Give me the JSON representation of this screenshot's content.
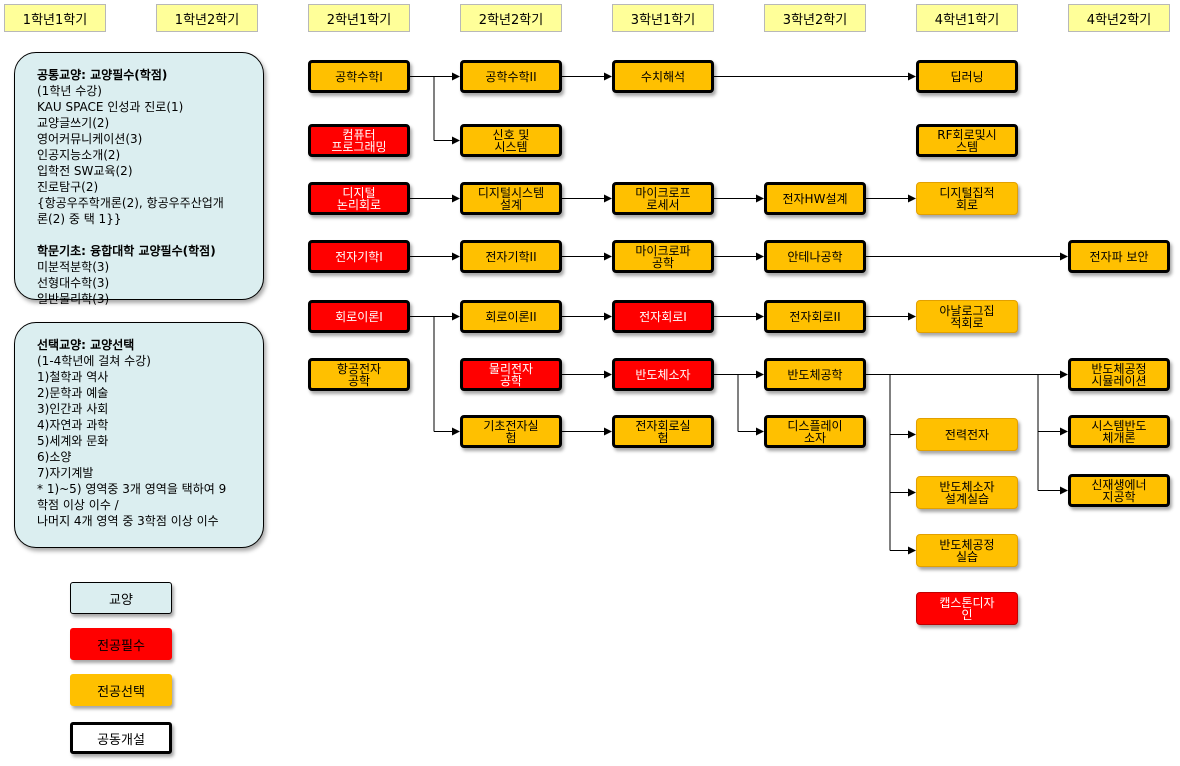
{
  "semesters": [
    "1학년1학기",
    "1학년2학기",
    "2학년1학기",
    "2학년2학기",
    "3학년1학기",
    "3학년2학기",
    "4학년1학기",
    "4학년2학기"
  ],
  "panel1": {
    "lines": [
      {
        "t": "공통교양: 교양필수(학점)",
        "b": true
      },
      {
        "t": "(1학년 수강)"
      },
      {
        "t": "KAU SPACE 인성과 진로(1)"
      },
      {
        "t": "교양글쓰기(2)"
      },
      {
        "t": "영어커뮤니케이션(3)"
      },
      {
        "t": "인공지능소개(2)"
      },
      {
        "t": "입학전 SW교육(2)"
      },
      {
        "t": "진로탐구(2)"
      },
      {
        "t": "{항공우주학개론(2), 항공우주산업개"
      },
      {
        "t": "론(2) 중 택 1}}"
      },
      {
        "gap": true
      },
      {
        "t": "학문기초: 융합대학 교양필수(학점)",
        "b": true
      },
      {
        "t": "미분적분학(3)"
      },
      {
        "t": "선형대수학(3)"
      },
      {
        "t": "일반물리학(3)"
      }
    ]
  },
  "panel2": {
    "lines": [
      {
        "t": "선택교양: 교양선택",
        "b": true
      },
      {
        "t": "(1-4학년에 걸쳐 수강)"
      },
      {
        "t": "1)철학과 역사"
      },
      {
        "t": "2)문학과 예술"
      },
      {
        "t": "3)인간과 사회"
      },
      {
        "t": "4)자연과 과학"
      },
      {
        "t": "5)세계와 문화"
      },
      {
        "t": "6)소양"
      },
      {
        "t": "7)자기계발"
      },
      {
        "t": "* 1)~5) 영역중 3개 영역을 택하여 9"
      },
      {
        "t": "학점 이상 이수 /"
      },
      {
        "t": "나머지 4개 영역 중 3학점 이상 이수"
      }
    ]
  },
  "legend": [
    {
      "label": "교양",
      "fill": "#dbeef0",
      "border": "#000000"
    },
    {
      "label": "전공필수",
      "fill": "#ff0000",
      "border": "#ff0000"
    },
    {
      "label": "전공선택",
      "fill": "#ffc000",
      "border": "#ffc000"
    },
    {
      "label": "공동개설",
      "fill": "#ffffff",
      "border": "#000000"
    }
  ],
  "courses": [
    {
      "id": "c1",
      "label": "공학수학I",
      "kind": "orange",
      "bold": true
    },
    {
      "id": "c2",
      "label": "공학수학II",
      "kind": "orange",
      "bold": true
    },
    {
      "id": "c3",
      "label": "수치해석",
      "kind": "orange",
      "bold": true
    },
    {
      "id": "c4",
      "label": "딥러닝",
      "kind": "orange",
      "bold": true
    },
    {
      "id": "c5",
      "label": "컴퓨터\n프로그래밍",
      "kind": "red",
      "bold": true
    },
    {
      "id": "c6",
      "label": "신호 및\n시스템",
      "kind": "orange",
      "bold": true
    },
    {
      "id": "c7",
      "label": "RF회로및시\n스템",
      "kind": "orange",
      "bold": true
    },
    {
      "id": "c8",
      "label": "디지털\n논리회로",
      "kind": "red",
      "bold": true
    },
    {
      "id": "c9",
      "label": "디지털시스템\n설계",
      "kind": "orange",
      "bold": true
    },
    {
      "id": "c10",
      "label": "마이크로프\n로세서",
      "kind": "orange",
      "bold": true
    },
    {
      "id": "c11",
      "label": "전자HW설계",
      "kind": "orange",
      "bold": true
    },
    {
      "id": "c12",
      "label": "디지털집적\n회로",
      "kind": "orange",
      "bold": false
    },
    {
      "id": "c13",
      "label": "전자기학I",
      "kind": "red",
      "bold": true
    },
    {
      "id": "c14",
      "label": "전자기학II",
      "kind": "orange",
      "bold": true
    },
    {
      "id": "c15",
      "label": "마이크로파\n공학",
      "kind": "orange",
      "bold": true
    },
    {
      "id": "c16",
      "label": "안테나공학",
      "kind": "orange",
      "bold": true
    },
    {
      "id": "c17",
      "label": "전자파 보안",
      "kind": "orange",
      "bold": true
    },
    {
      "id": "c18",
      "label": "회로이론I",
      "kind": "red",
      "bold": true
    },
    {
      "id": "c19",
      "label": "회로이론II",
      "kind": "orange",
      "bold": true
    },
    {
      "id": "c20",
      "label": "전자회로I",
      "kind": "red",
      "bold": true
    },
    {
      "id": "c21",
      "label": "전자회로II",
      "kind": "orange",
      "bold": true
    },
    {
      "id": "c22",
      "label": "아날로그집\n적회로",
      "kind": "orange",
      "bold": false
    },
    {
      "id": "c23",
      "label": "항공전자\n공학",
      "kind": "orange",
      "bold": true
    },
    {
      "id": "c24",
      "label": "물리전자\n공학",
      "kind": "red",
      "bold": true
    },
    {
      "id": "c25",
      "label": "반도체소자",
      "kind": "red",
      "bold": true
    },
    {
      "id": "c26",
      "label": "반도체공학",
      "kind": "orange",
      "bold": true
    },
    {
      "id": "c27",
      "label": "반도체공정\n시뮬레이션",
      "kind": "orange",
      "bold": true
    },
    {
      "id": "c28",
      "label": "기초전자실\n험",
      "kind": "orange",
      "bold": true
    },
    {
      "id": "c29",
      "label": "전자회로실\n험",
      "kind": "orange",
      "bold": true
    },
    {
      "id": "c30",
      "label": "디스플레이\n소자",
      "kind": "orange",
      "bold": true
    },
    {
      "id": "c31",
      "label": "전력전자",
      "kind": "orange",
      "bold": false
    },
    {
      "id": "c32",
      "label": "시스템반도\n체개론",
      "kind": "orange",
      "bold": true
    },
    {
      "id": "c33",
      "label": "반도체소자\n설계실습",
      "kind": "orange",
      "bold": false
    },
    {
      "id": "c34",
      "label": "신재생에너\n지공학",
      "kind": "orange",
      "bold": true
    },
    {
      "id": "c35",
      "label": "반도체공정\n실습",
      "kind": "orange",
      "bold": false
    },
    {
      "id": "c36",
      "label": "캡스톤디자\n인",
      "kind": "red",
      "bold": false
    }
  ]
}
